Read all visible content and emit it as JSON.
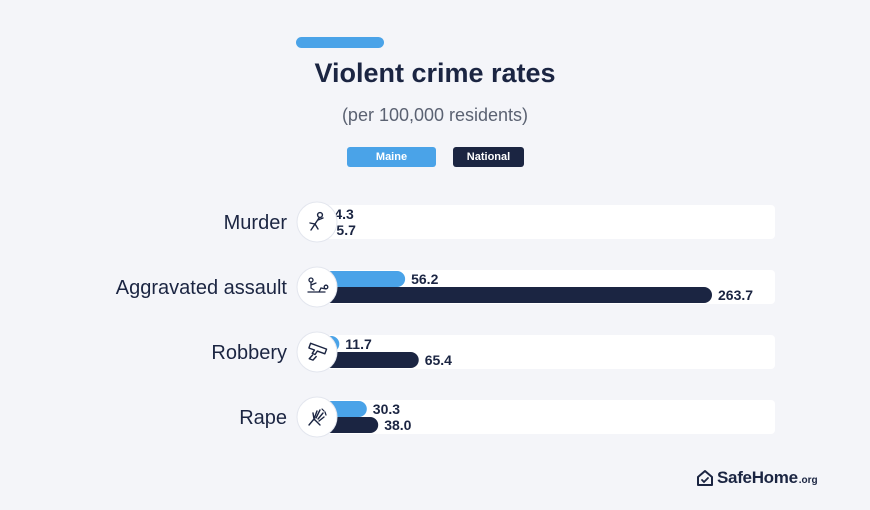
{
  "title": "Violent crime rates",
  "subtitle": "(per 100,000 residents)",
  "legend": [
    {
      "name": "Maine",
      "color": "#4aa3e8"
    },
    {
      "name": "National",
      "color": "#1b2542"
    }
  ],
  "brand": {
    "name": "SafeHome",
    "suffix": ".org"
  },
  "chart_data": {
    "type": "bar",
    "orientation": "horizontal",
    "title": "Violent crime rates",
    "subtitle": "(per 100,000 residents)",
    "categories": [
      "Murder",
      "Aggravated assault",
      "Robbery",
      "Rape"
    ],
    "category_icons": [
      "victim-icon",
      "assault-icon",
      "gun-icon",
      "hand-icon"
    ],
    "series": [
      {
        "name": "Maine",
        "values": [
          4.3,
          56.2,
          11.7,
          30.3
        ],
        "labels": [
          "4.3",
          "56.2",
          "11.7",
          "30.3"
        ],
        "color": "#4aa3e8"
      },
      {
        "name": "National",
        "values": [
          5.7,
          263.7,
          65.4,
          38.0
        ],
        "labels": [
          "5.7",
          "263.7",
          "65.4",
          "38.0"
        ],
        "color": "#1b2542"
      }
    ],
    "xlim": [
      0,
      263.7
    ],
    "grid": false,
    "legend_position": "top-center"
  }
}
